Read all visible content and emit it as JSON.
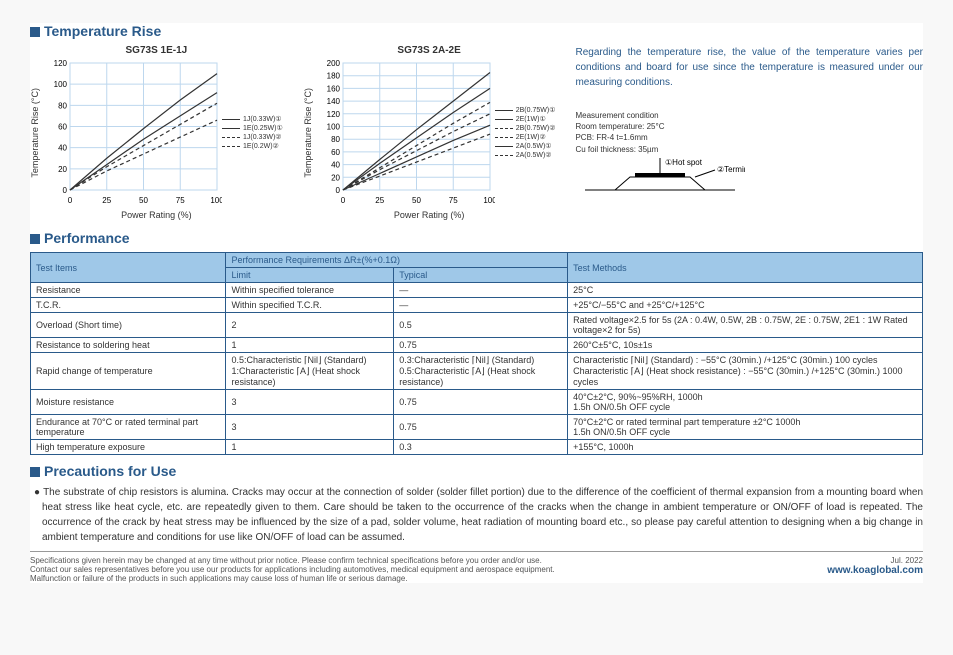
{
  "sections": {
    "temprise": "Temperature Rise",
    "performance": "Performance",
    "precautions": "Precautions for Use"
  },
  "chart1": {
    "title": "SG73S 1E-1J",
    "type": "line",
    "xlabel": "Power Rating (%)",
    "ylabel": "Temperature Rise (°C)",
    "xlim": [
      0,
      100
    ],
    "xtick_step": 25,
    "ylim": [
      0,
      120
    ],
    "ytick_step": 20,
    "grid_color": "#bdd7ee",
    "background_color": "#ffffff",
    "series": [
      {
        "name": "1J(0.33W)①",
        "style": "solid",
        "vals": [
          [
            0,
            0
          ],
          [
            25,
            30
          ],
          [
            50,
            58
          ],
          [
            75,
            85
          ],
          [
            100,
            110
          ]
        ]
      },
      {
        "name": "1E(0.25W)①",
        "style": "solid",
        "vals": [
          [
            0,
            0
          ],
          [
            25,
            24
          ],
          [
            50,
            48
          ],
          [
            75,
            70
          ],
          [
            100,
            92
          ]
        ]
      },
      {
        "name": "1J(0.33W)②",
        "style": "dash",
        "vals": [
          [
            0,
            0
          ],
          [
            25,
            22
          ],
          [
            50,
            42
          ],
          [
            75,
            62
          ],
          [
            100,
            82
          ]
        ]
      },
      {
        "name": "1E(0.2W)②",
        "style": "dash",
        "vals": [
          [
            0,
            0
          ],
          [
            25,
            18
          ],
          [
            50,
            34
          ],
          [
            75,
            50
          ],
          [
            100,
            66
          ]
        ]
      }
    ]
  },
  "chart2": {
    "title": "SG73S 2A-2E",
    "type": "line",
    "xlabel": "Power Rating (%)",
    "ylabel": "Temperature Rise (°C)",
    "xlim": [
      0,
      100
    ],
    "xtick_step": 25,
    "ylim": [
      0,
      200
    ],
    "ytick_step": 20,
    "grid_color": "#bdd7ee",
    "background_color": "#ffffff",
    "series": [
      {
        "name": "2B(0.75W)①",
        "style": "solid",
        "vals": [
          [
            0,
            0
          ],
          [
            25,
            48
          ],
          [
            50,
            95
          ],
          [
            75,
            140
          ],
          [
            100,
            185
          ]
        ]
      },
      {
        "name": "2E(1W)①",
        "style": "solid",
        "vals": [
          [
            0,
            0
          ],
          [
            25,
            42
          ],
          [
            50,
            82
          ],
          [
            75,
            122
          ],
          [
            100,
            160
          ]
        ]
      },
      {
        "name": "2B(0.75W)②",
        "style": "dash",
        "vals": [
          [
            0,
            0
          ],
          [
            25,
            35
          ],
          [
            50,
            70
          ],
          [
            75,
            105
          ],
          [
            100,
            138
          ]
        ]
      },
      {
        "name": "2E(1W)②",
        "style": "dash",
        "vals": [
          [
            0,
            0
          ],
          [
            25,
            32
          ],
          [
            50,
            62
          ],
          [
            75,
            92
          ],
          [
            100,
            120
          ]
        ]
      },
      {
        "name": "2A(0.5W)①",
        "style": "solid",
        "vals": [
          [
            0,
            0
          ],
          [
            25,
            26
          ],
          [
            50,
            52
          ],
          [
            75,
            78
          ],
          [
            100,
            102
          ]
        ]
      },
      {
        "name": "2A(0.5W)②",
        "style": "dash",
        "vals": [
          [
            0,
            0
          ],
          [
            25,
            22
          ],
          [
            50,
            44
          ],
          [
            75,
            66
          ],
          [
            100,
            88
          ]
        ]
      }
    ]
  },
  "rightText": "Regarding the temperature rise, the value of the temperature varies per conditions and board for use since the temperature is measured under our measuring conditions.",
  "measCond": {
    "l1": "Measurement condition",
    "l2": "Room temperature: 25°C",
    "l3": "PCB: FR-4 t=1.6mm",
    "l4": "Cu foil thickness: 35µm",
    "hotspot": "①Hot spot",
    "terminal": "②Terminal"
  },
  "perfTable": {
    "h_testitems": "Test Items",
    "h_perfreq": "Performance Requirements ΔR±(%+0.1Ω)",
    "h_limit": "Limit",
    "h_typical": "Typical",
    "h_methods": "Test Methods",
    "rows": [
      {
        "item": "Resistance",
        "limit": "Within specified tolerance",
        "typical": "—",
        "method": "25°C"
      },
      {
        "item": "T.C.R.",
        "limit": "Within specified T.C.R.",
        "typical": "—",
        "method": "+25°C/−55°C and +25°C/+125°C"
      },
      {
        "item": "Overload (Short time)",
        "limit": "2",
        "typical": "0.5",
        "method": "Rated voltage×2.5 for 5s (2A : 0.4W, 0.5W, 2B : 0.75W, 2E : 0.75W, 2E1 : 1W Rated voltage×2 for 5s)"
      },
      {
        "item": "Resistance to soldering heat",
        "limit": "1",
        "typical": "0.75",
        "method": "260°C±5°C, 10s±1s"
      },
      {
        "item": "Rapid change of temperature",
        "limit": "0.5:Characteristic ⌈Nil⌋ (Standard)\n1:Characteristic ⌈A⌋ (Heat shock resistance)",
        "typical": "0.3:Characteristic ⌈Nil⌋ (Standard)\n0.5:Characteristic ⌈A⌋ (Heat shock resistance)",
        "method": "Characteristic ⌈Nil⌋ (Standard) : −55°C (30min.) /+125°C (30min.) 100 cycles\nCharacteristic ⌈A⌋ (Heat shock resistance) : −55°C (30min.) /+125°C (30min.) 1000 cycles"
      },
      {
        "item": "Moisture resistance",
        "limit": "3",
        "typical": "0.75",
        "method": "40°C±2°C, 90%~95%RH, 1000h\n1.5h ON/0.5h OFF cycle"
      },
      {
        "item": "Endurance at 70°C or rated terminal part temperature",
        "limit": "3",
        "typical": "0.75",
        "method": "70°C±2°C or rated terminal part temperature ±2°C 1000h\n1.5h ON/0.5h OFF cycle"
      },
      {
        "item": "High temperature exposure",
        "limit": "1",
        "typical": "0.3",
        "method": "+155°C, 1000h"
      }
    ]
  },
  "precautionsText": "● The substrate of chip resistors is alumina. Cracks may occur at the connection of solder (solder fillet portion) due to the difference of the coefficient of thermal expansion from a mounting board when heat stress like heat cycle, etc. are repeatedly given to them. Care should be taken to the occurrence of the cracks when the change in ambient temperature or ON/OFF of load is repeated. The occurrence of the crack by heat stress may be influenced by the size of a pad, solder volume, heat radiation of mounting board etc., so please pay careful attention to designing when a big change in ambient temperature and conditions for use like ON/OFF of load can be assumed.",
  "footer": {
    "text": "Specifications given herein may be changed at any time without prior notice. Please confirm technical specifications before you order and/or use.\nContact our sales representatives before you use our products for applications including automotives, medical equipment and aerospace equipment.\nMalfunction or failure of the products in such applications may cause loss of human life or serious damage.",
    "date": "Jul. 2022",
    "url": "www.koaglobal.com"
  }
}
